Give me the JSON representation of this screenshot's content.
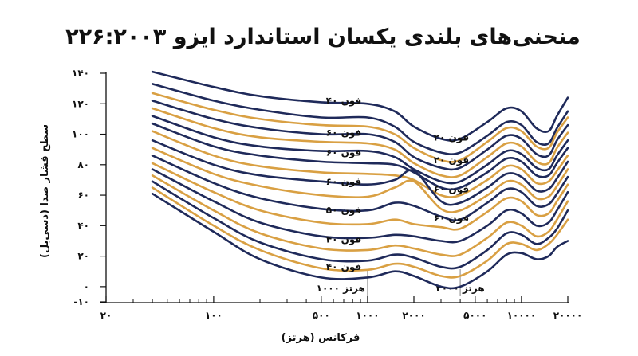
{
  "chart_data": {
    "type": "line",
    "title": "منحنی‌های بلندی یکسان استاندارد ایزو ۲۲۶:۲۰۰۳",
    "xlabel": "فرکانس (هرتز)",
    "ylabel": "سطح فشار صدا (دسی‌بل)",
    "x_scale": "log",
    "xlim": [
      20,
      20000
    ],
    "ylim": [
      -10,
      140
    ],
    "x_ticks": [
      20,
      100,
      500,
      1000,
      2000,
      5000,
      10000,
      20000
    ],
    "x_tick_labels": [
      "۲۰",
      "۱۰۰",
      "۵۰۰",
      "۱۰۰۰",
      "۲۰۰۰",
      "۵۰۰۰",
      "۱۰۰۰۰",
      "۲۰۰۰۰"
    ],
    "y_ticks": [
      -10,
      0,
      20,
      40,
      60,
      80,
      100,
      120,
      140
    ],
    "y_tick_labels": [
      "-۱۰",
      "۰",
      "۲۰",
      "۴۰",
      "۶۰",
      "۸۰",
      "۱۰۰",
      "۱۲۰",
      "۱۴۰"
    ],
    "grid": false,
    "colors": {
      "navy": "#1f2a5a",
      "gold": "#d9a043",
      "reference": "#9a9a9a"
    },
    "x": [
      40,
      100,
      200,
      500,
      1000,
      1500,
      2000,
      3000,
      4000,
      6000,
      8000,
      10000,
      12500,
      15000,
      17000,
      20000
    ],
    "series": [
      {
        "color": "#1f2a5a",
        "values": [
          141,
          131,
          125,
          121,
          120,
          115,
          105,
          97,
          97,
          108,
          117,
          115,
          104,
          102,
          112,
          124
        ]
      },
      {
        "color": "#1f2a5a",
        "values": [
          133,
          122,
          116,
          111,
          111,
          105,
          95,
          88,
          88,
          99,
          108,
          106,
          95,
          94,
          104,
          115
        ]
      },
      {
        "color": "#d9a043",
        "values": [
          127,
          116,
          110,
          106,
          105,
          100,
          91,
          83,
          83,
          95,
          104,
          102,
          92,
          91,
          101,
          111
        ]
      },
      {
        "color": "#1f2a5a",
        "values": [
          122,
          110,
          104,
          100,
          100,
          95,
          85,
          78,
          78,
          90,
          99,
          97,
          87,
          86,
          96,
          106
        ]
      },
      {
        "color": "#d9a043",
        "values": [
          117,
          104,
          98,
          95,
          94,
          90,
          81,
          73,
          73,
          85,
          94,
          92,
          82,
          81,
          91,
          101
        ]
      },
      {
        "color": "#1f2a5a",
        "values": [
          112,
          98,
          92,
          89,
          89,
          85,
          77,
          69,
          69,
          80,
          89,
          87,
          78,
          77,
          86,
          96
        ]
      },
      {
        "color": "#1f2a5a",
        "values": [
          107,
          92,
          86,
          82,
          81,
          80,
          75,
          65,
          65,
          75,
          84,
          82,
          73,
          73,
          81,
          91
        ]
      },
      {
        "color": "#d9a043",
        "values": [
          102,
          86,
          79,
          75,
          74,
          73,
          70,
          60,
          60,
          70,
          79,
          77,
          68,
          69,
          76,
          86
        ]
      },
      {
        "color": "#1f2a5a",
        "values": [
          96,
          80,
          73,
          69,
          67,
          70,
          76,
          56,
          55,
          65,
          74,
          72,
          63,
          64,
          71,
          82
        ]
      },
      {
        "color": "#d9a043",
        "values": [
          91,
          74,
          66,
          60,
          59,
          65,
          69,
          51,
          50,
          60,
          69,
          67,
          58,
          59,
          66,
          77
        ]
      },
      {
        "color": "#1f2a5a",
        "values": [
          86,
          68,
          58,
          51,
          50,
          55,
          53,
          46,
          44,
          55,
          64,
          62,
          53,
          54,
          61,
          72
        ]
      },
      {
        "color": "#d9a043",
        "values": [
          81,
          62,
          50,
          42,
          41,
          44,
          41,
          39,
          38,
          49,
          58,
          56,
          47,
          48,
          56,
          67
        ]
      },
      {
        "color": "#1f2a5a",
        "values": [
          77,
          56,
          42,
          33,
          32,
          34,
          33,
          30,
          30,
          40,
          50,
          48,
          40,
          42,
          50,
          62
        ]
      },
      {
        "color": "#d9a043",
        "values": [
          73,
          50,
          35,
          25,
          24,
          27,
          25,
          21,
          21,
          32,
          42,
          40,
          33,
          36,
          44,
          56
        ]
      },
      {
        "color": "#1f2a5a",
        "values": [
          69,
          45,
          29,
          18,
          17,
          21,
          19,
          13,
          13,
          24,
          35,
          34,
          28,
          32,
          38,
          50
        ]
      },
      {
        "color": "#d9a043",
        "values": [
          65,
          40,
          24,
          12,
          11,
          15,
          13,
          7,
          7,
          17,
          28,
          28,
          24,
          28,
          34,
          44
        ]
      },
      {
        "color": "#1f2a5a",
        "values": [
          61,
          36,
          18,
          6,
          6,
          10,
          7,
          0,
          0,
          10,
          21,
          22,
          18,
          20,
          26,
          30
        ]
      }
    ],
    "curve_labels": [
      {
        "text": "۴۰ فون",
        "x": 700,
        "y": 122
      },
      {
        "text": "۶۰ فون",
        "x": 700,
        "y": 101
      },
      {
        "text": "۶۰ فون",
        "x": 700,
        "y": 88
      },
      {
        "text": "۶۰ فون",
        "x": 700,
        "y": 69
      },
      {
        "text": "۵۰ فون",
        "x": 700,
        "y": 50
      },
      {
        "text": "۴۰ فون",
        "x": 700,
        "y": 31
      },
      {
        "text": "۴۰ فون",
        "x": 700,
        "y": 13
      },
      {
        "text": "۲۰ فون",
        "x": 3500,
        "y": 98
      },
      {
        "text": "۲۰ فون",
        "x": 3500,
        "y": 83
      },
      {
        "text": "۶۰ فون",
        "x": 3500,
        "y": 64
      },
      {
        "text": "۶۰ فون",
        "x": 3500,
        "y": 45
      }
    ],
    "reference_lines": [
      {
        "x": 1000,
        "label": "۱۰۰۰ هرتز"
      },
      {
        "x": 4000,
        "label": "۴۰۰۰ هرتز"
      }
    ]
  }
}
